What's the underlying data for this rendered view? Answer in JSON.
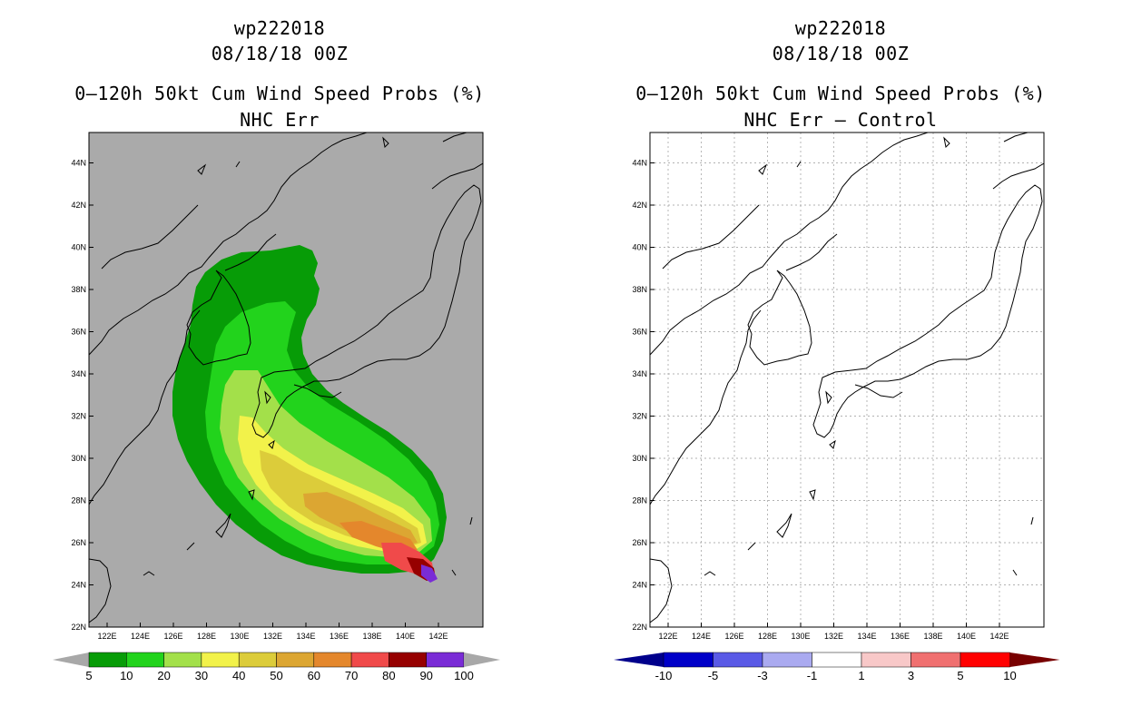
{
  "left_panel": {
    "storm_id": "wp222018",
    "datetime": "08/18/18 00Z",
    "product": "0–120h 50kt Cum Wind Speed Probs (%)",
    "subtitle": "NHC Err",
    "colorbar": {
      "labels": [
        "5",
        "10",
        "20",
        "30",
        "40",
        "50",
        "60",
        "70",
        "80",
        "90",
        "100"
      ],
      "colors": [
        "#079c07",
        "#22d31c",
        "#a3e04a",
        "#f2f24a",
        "#dccc3a",
        "#dca632",
        "#e4872c",
        "#f04a4a",
        "#960000",
        "#7a2cd6"
      ],
      "end_color": "#a8a8a8"
    }
  },
  "right_panel": {
    "storm_id": "wp222018",
    "datetime": "08/18/18 00Z",
    "product": "0–120h 50kt Cum Wind Speed Probs (%)",
    "subtitle": "NHC Err – Control",
    "colorbar": {
      "labels": [
        "-10",
        "-5",
        "-3",
        "-1",
        "1",
        "3",
        "5",
        "10"
      ],
      "colors": [
        "#0000c8",
        "#5a5ae6",
        "#aaaaf0",
        "#ffffff",
        "#f8c8c8",
        "#f07070",
        "#ff0000"
      ],
      "left_end_color": "#00008c",
      "right_end_color": "#780000"
    }
  },
  "axes": {
    "lon_labels": [
      "122E",
      "124E",
      "126E",
      "128E",
      "130E",
      "132E",
      "134E",
      "136E",
      "138E",
      "140E",
      "142E"
    ],
    "lat_labels": [
      "22N",
      "24N",
      "26N",
      "28N",
      "30N",
      "32N",
      "34N",
      "36N",
      "38N",
      "40N",
      "42N",
      "44N"
    ]
  },
  "colors": {
    "map_background_left": "#aaaaaa",
    "map_background_right": "#ffffff",
    "coast": "#000000"
  }
}
